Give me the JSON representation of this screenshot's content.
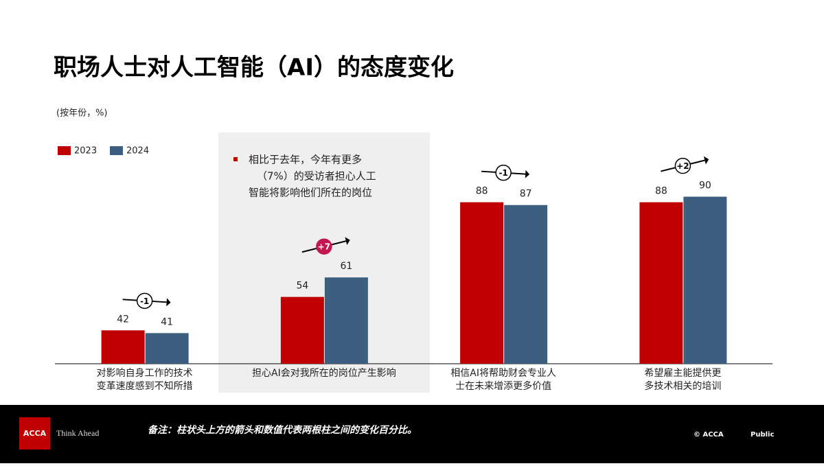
{
  "chart_data": {
    "type": "bar",
    "title": "职场人士对人工智能（AI）的态度变化",
    "subtitle": "(按年份，%)",
    "categories": [
      [
        "对影响自身工作的技术",
        "变革速度感到不知所措"
      ],
      [
        "担心AI会对我所在的岗位产生影响"
      ],
      [
        "相信AI将帮助财会专业人",
        "士在未来增添更多价值"
      ],
      [
        "希望雇主能提供更",
        "多技术相关的培训"
      ]
    ],
    "series": [
      {
        "name": "2023",
        "color": "#c00000",
        "values": [
          42,
          54,
          88,
          88
        ]
      },
      {
        "name": "2024",
        "color": "#3d5f7f",
        "values": [
          41,
          61,
          87,
          90
        ]
      }
    ],
    "annotations": [
      "-1",
      "+7",
      "-1",
      "+2"
    ],
    "highlight_note": [
      "相比于去年，今年有更多",
      "（7%）的受访者担心人工",
      "智能将影响他们所在的岗位"
    ],
    "ylim": [
      30,
      100
    ]
  },
  "footer": {
    "logo": "ACCA",
    "tagline": "Think Ahead",
    "note": "备注：柱状头上方的箭头和数值代表两根柱之间的变化百分比。",
    "copyright": "© ACCA",
    "classification": "Public"
  }
}
